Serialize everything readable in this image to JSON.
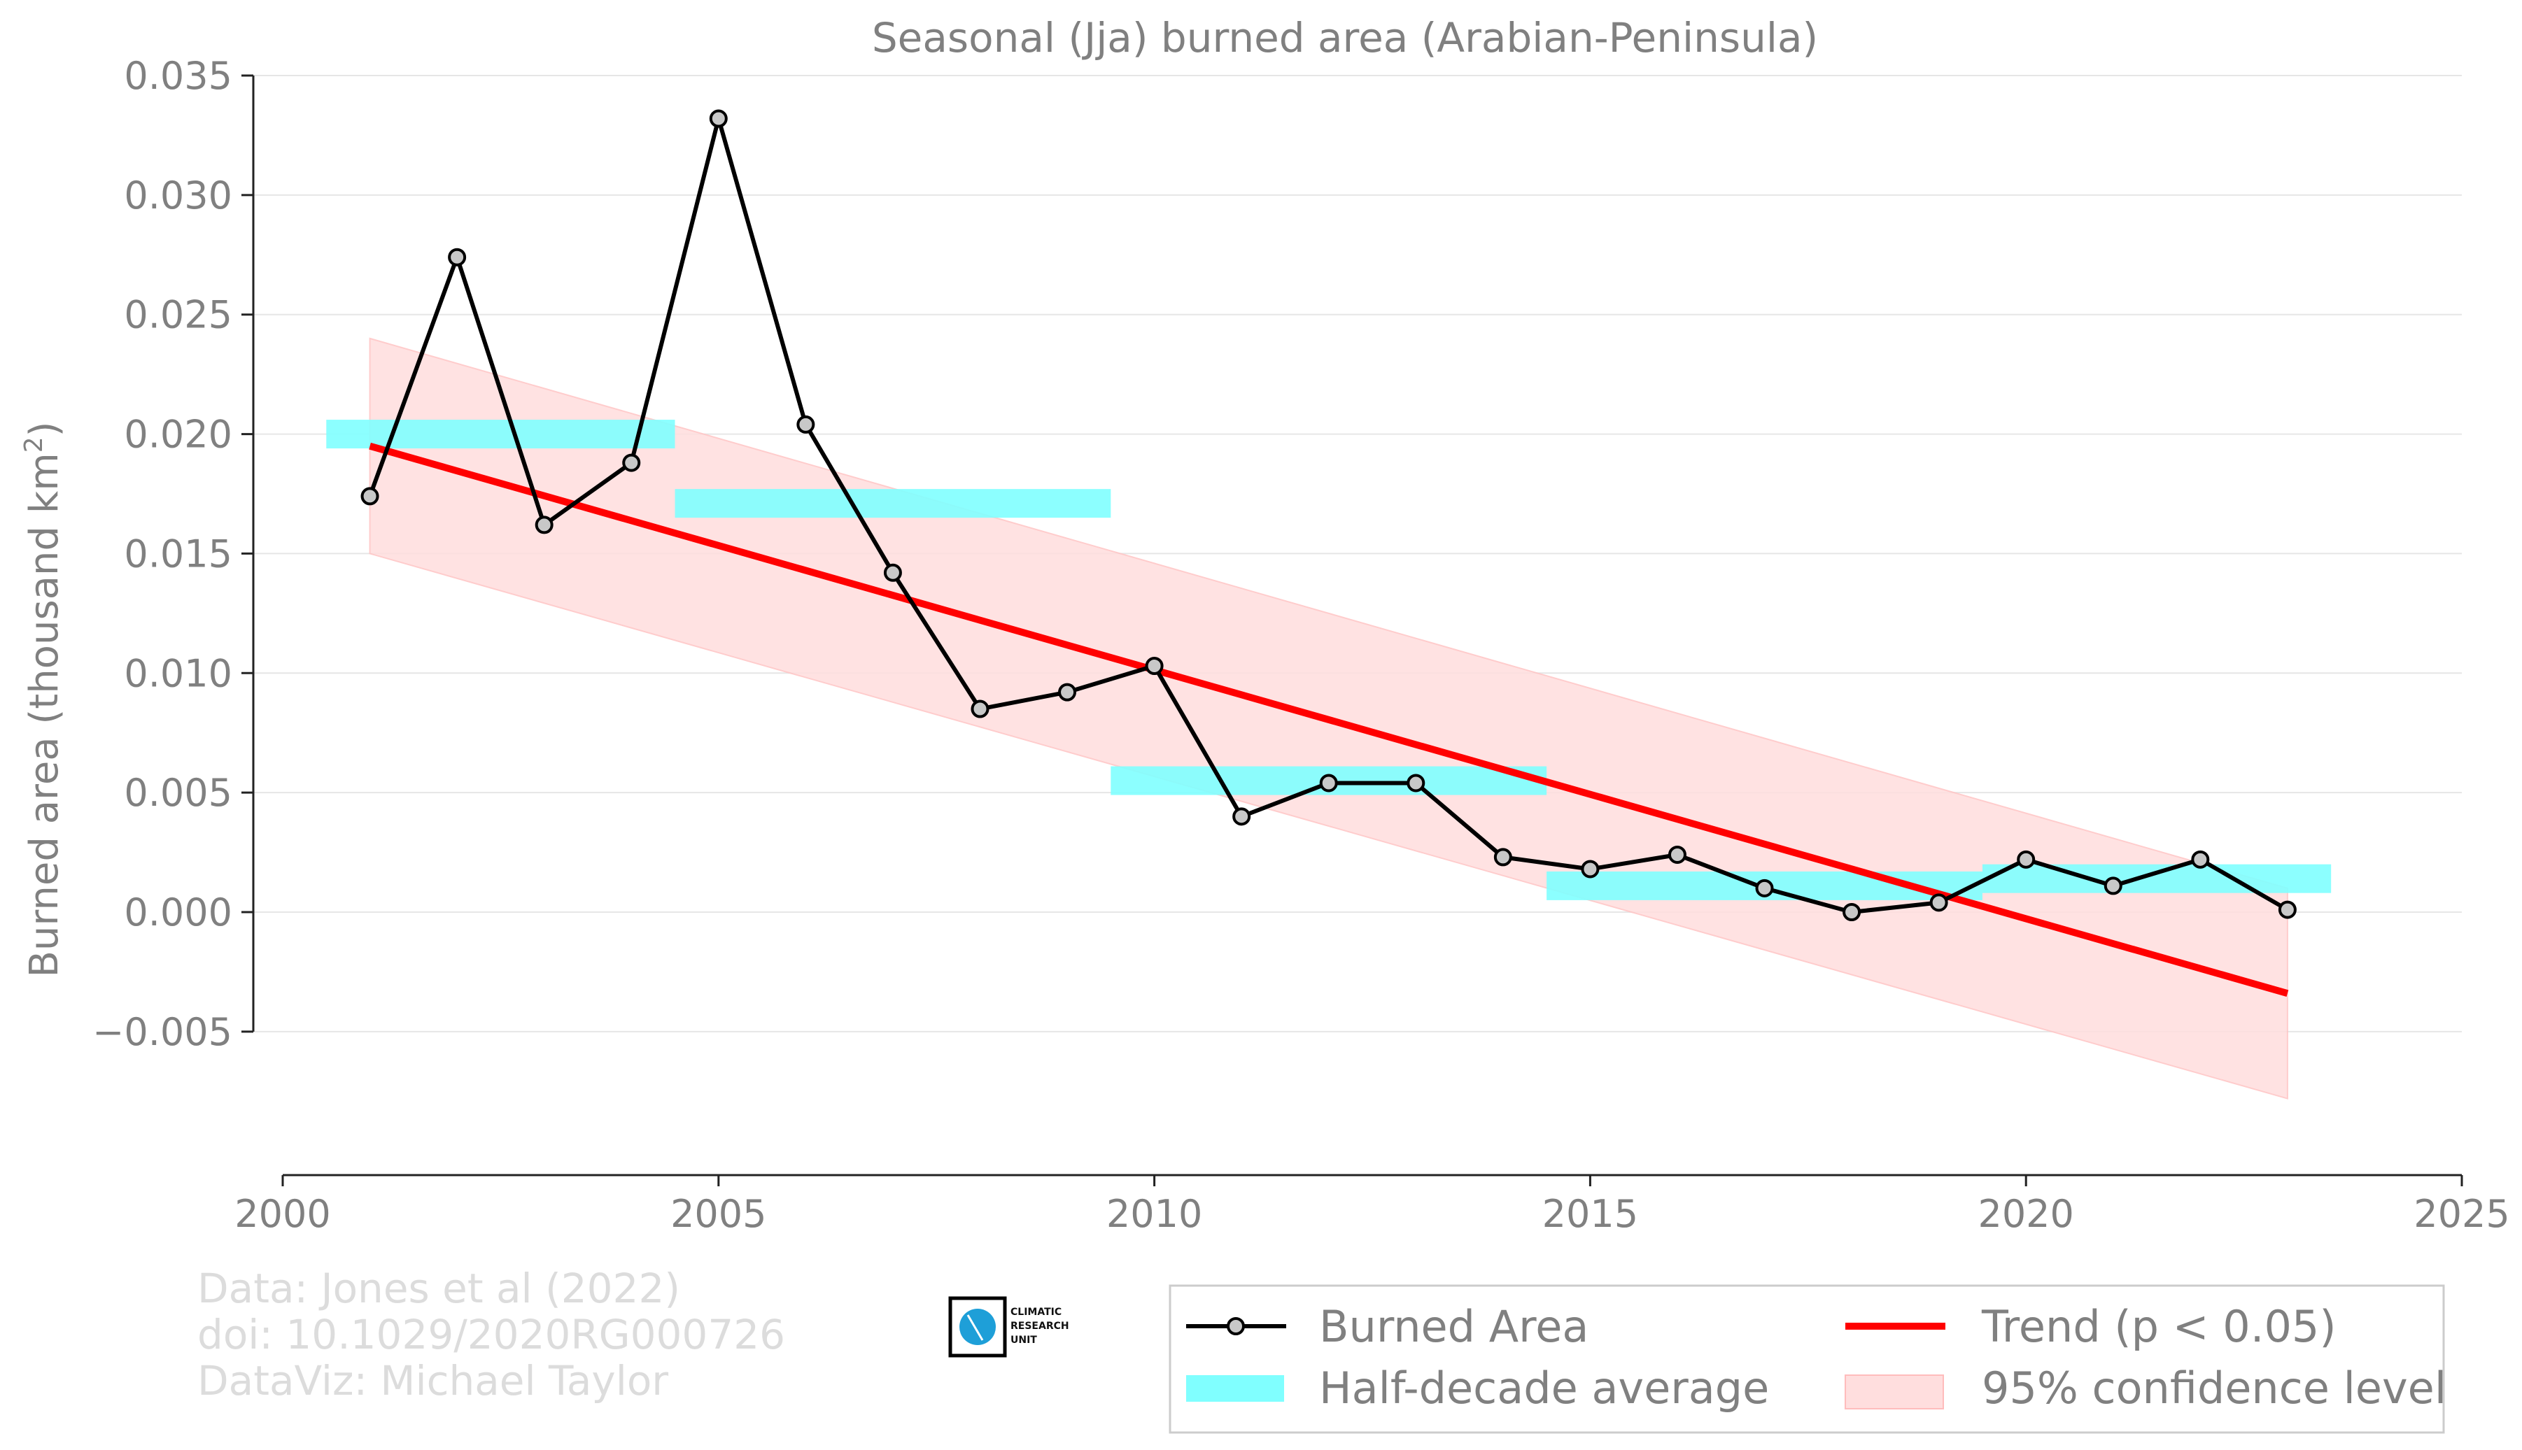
{
  "chart_data": {
    "type": "line",
    "title": "Seasonal (Jja) burned area (Arabian-Peninsula)",
    "xlabel": "",
    "ylabel": "Burned area (thousand km",
    "ylabel_sup": "2",
    "ylabel_close": ")",
    "xlim": [
      2000,
      2025
    ],
    "ylim": [
      -0.008,
      0.035
    ],
    "xticks": [
      2000,
      2005,
      2010,
      2015,
      2020,
      2025
    ],
    "xtick_labels": [
      "2000",
      "2005",
      "2010",
      "2015",
      "2020",
      "2025"
    ],
    "yticks": [
      -0.005,
      0.0,
      0.005,
      0.01,
      0.015,
      0.02,
      0.025,
      0.03,
      0.035
    ],
    "ytick_labels": [
      "−0.005",
      "0.000",
      "0.005",
      "0.010",
      "0.015",
      "0.020",
      "0.025",
      "0.030",
      "0.035"
    ],
    "grid": "horizontal",
    "series": [
      {
        "name": "Burned Area",
        "color": "#000000",
        "marker_fill": "#c8c8c8",
        "x": [
          2001,
          2002,
          2003,
          2004,
          2005,
          2006,
          2007,
          2008,
          2009,
          2010,
          2011,
          2012,
          2013,
          2014,
          2015,
          2016,
          2017,
          2018,
          2019,
          2020,
          2021,
          2022,
          2023
        ],
        "y": [
          0.0174,
          0.0274,
          0.0162,
          0.0188,
          0.0332,
          0.0204,
          0.0142,
          0.0085,
          0.0092,
          0.0103,
          0.004,
          0.0054,
          0.0054,
          0.0023,
          0.0018,
          0.0024,
          0.001,
          0.0,
          0.0004,
          0.0022,
          0.0011,
          0.0022,
          0.0001
        ]
      },
      {
        "name": "Trend (p < 0.05)",
        "color": "#ff0000",
        "x": [
          2001,
          2023
        ],
        "y": [
          0.0195,
          -0.0034
        ]
      }
    ],
    "half_decade_average": {
      "name": "Half-decade average",
      "color": "#80ffff",
      "bands": [
        {
          "x0": 2000.5,
          "x1": 2004.5,
          "y": 0.02
        },
        {
          "x0": 2004.5,
          "x1": 2009.5,
          "y": 0.0171
        },
        {
          "x0": 2009.5,
          "x1": 2014.5,
          "y": 0.0055
        },
        {
          "x0": 2014.5,
          "x1": 2019.5,
          "y": 0.0011
        },
        {
          "x0": 2019.5,
          "x1": 2023.5,
          "y": 0.0014
        }
      ],
      "band_halfwidth": 0.0006
    },
    "confidence_band": {
      "name": "95% confidence level",
      "color": "#ffdede",
      "x": [
        2001,
        2023
      ],
      "upper": [
        0.024,
        0.001
      ],
      "lower": [
        0.015,
        -0.0078
      ]
    },
    "legend": {
      "position": "bottom-right",
      "entries": [
        "Burned Area",
        "Half-decade average",
        "Trend (p < 0.05)",
        "95% confidence level"
      ]
    }
  },
  "credits": {
    "line1": "Data: Jones et al (2022)",
    "line2": "doi: 10.1029/2020RG000726",
    "line3": "DataViz: Michael Taylor"
  },
  "logo": {
    "line1": "CLIMATIC",
    "line2": "RESEARCH",
    "line3": "UNIT"
  }
}
